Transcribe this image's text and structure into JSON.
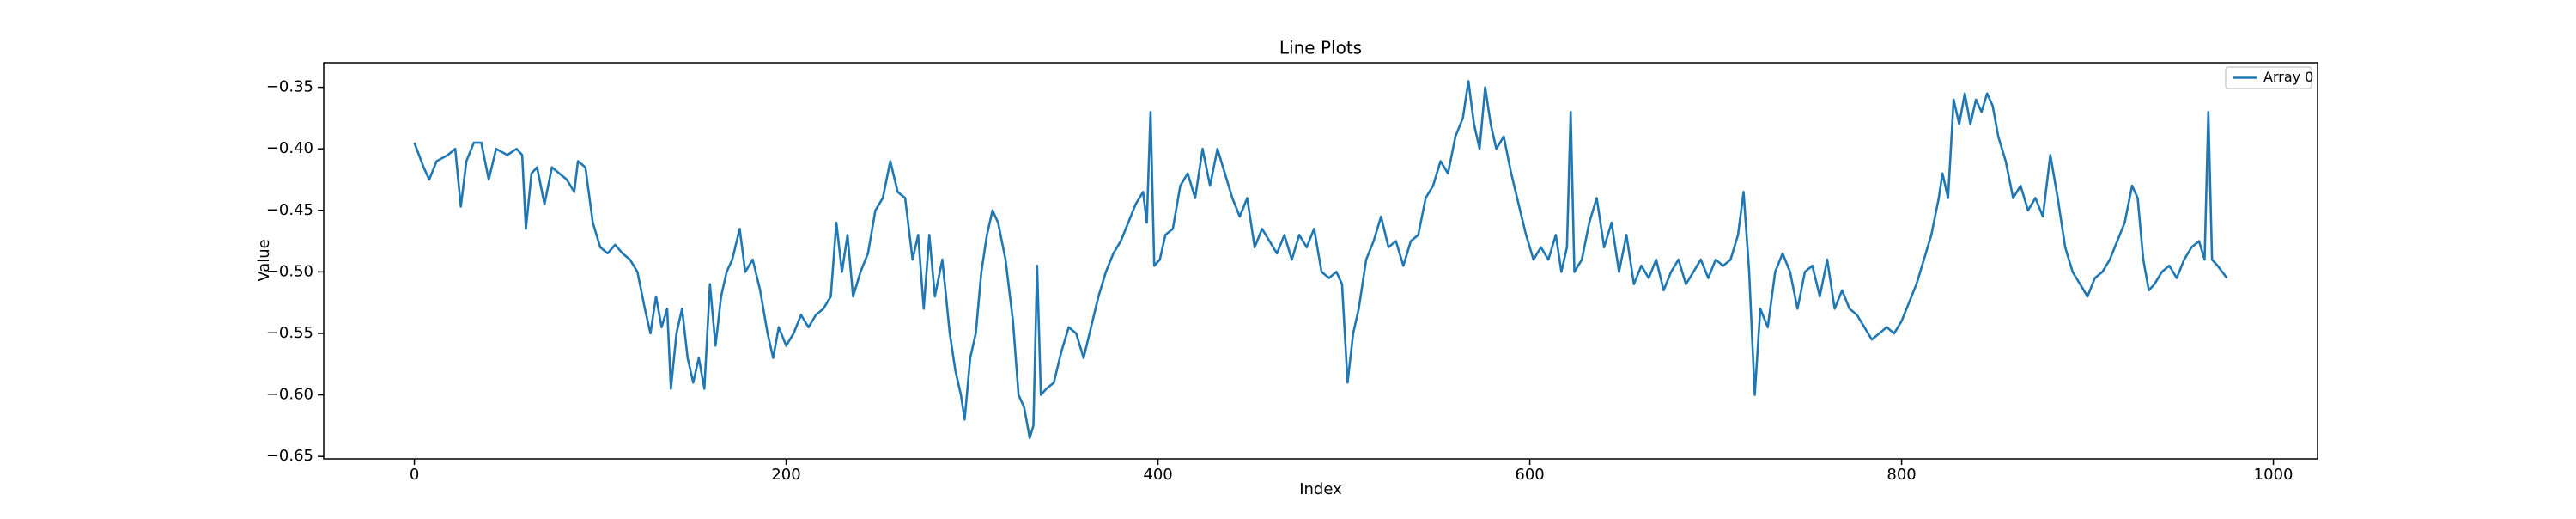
{
  "chart_data": {
    "type": "line",
    "title": "Line Plots",
    "xlabel": "Index",
    "ylabel": "Value",
    "x": [
      0,
      5,
      8,
      12,
      18,
      22,
      25,
      28,
      32,
      36,
      40,
      44,
      50,
      55,
      58,
      60,
      63,
      66,
      70,
      74,
      78,
      82,
      86,
      88,
      92,
      96,
      100,
      104,
      108,
      112,
      116,
      120,
      124,
      127,
      130,
      133,
      136,
      138,
      141,
      144,
      147,
      150,
      153,
      156,
      159,
      162,
      165,
      168,
      171,
      175,
      178,
      182,
      186,
      190,
      193,
      196,
      200,
      204,
      208,
      212,
      216,
      220,
      224,
      227,
      230,
      233,
      236,
      240,
      244,
      248,
      252,
      256,
      260,
      264,
      268,
      271,
      274,
      277,
      280,
      284,
      288,
      291,
      294,
      296,
      299,
      302,
      305,
      308,
      311,
      314,
      318,
      322,
      325,
      328,
      331,
      333,
      335,
      337,
      340,
      344,
      348,
      352,
      356,
      360,
      364,
      368,
      372,
      376,
      380,
      384,
      388,
      392,
      394,
      396,
      398,
      401,
      404,
      408,
      412,
      416,
      420,
      424,
      428,
      432,
      436,
      440,
      444,
      448,
      452,
      456,
      460,
      464,
      468,
      472,
      476,
      480,
      484,
      488,
      492,
      496,
      499,
      502,
      505,
      508,
      512,
      516,
      520,
      524,
      528,
      532,
      536,
      540,
      544,
      548,
      552,
      556,
      560,
      564,
      567,
      570,
      573,
      576,
      579,
      582,
      586,
      590,
      594,
      598,
      602,
      606,
      610,
      614,
      617,
      620,
      622,
      624,
      628,
      632,
      636,
      640,
      644,
      648,
      652,
      656,
      660,
      664,
      668,
      672,
      676,
      680,
      684,
      688,
      692,
      696,
      700,
      704,
      708,
      712,
      715,
      718,
      721,
      724,
      728,
      732,
      736,
      740,
      744,
      748,
      752,
      756,
      760,
      764,
      768,
      772,
      776,
      780,
      784,
      788,
      792,
      796,
      800,
      804,
      808,
      812,
      816,
      820,
      822,
      825,
      828,
      831,
      834,
      837,
      840,
      843,
      846,
      849,
      852,
      856,
      860,
      864,
      868,
      872,
      876,
      880,
      884,
      888,
      892,
      896,
      900,
      904,
      908,
      912,
      916,
      920,
      924,
      927,
      930,
      933,
      936,
      940,
      944,
      948,
      952,
      956,
      960,
      963,
      965,
      967,
      970,
      975
    ],
    "series": [
      {
        "name": "Array 0",
        "color": "#1f77b4",
        "values": [
          -0.395,
          -0.415,
          -0.425,
          -0.41,
          -0.405,
          -0.4,
          -0.447,
          -0.41,
          -0.395,
          -0.395,
          -0.425,
          -0.4,
          -0.405,
          -0.4,
          -0.405,
          -0.465,
          -0.42,
          -0.415,
          -0.445,
          -0.415,
          -0.42,
          -0.425,
          -0.435,
          -0.41,
          -0.415,
          -0.46,
          -0.48,
          -0.485,
          -0.478,
          -0.485,
          -0.49,
          -0.5,
          -0.53,
          -0.55,
          -0.52,
          -0.545,
          -0.53,
          -0.595,
          -0.55,
          -0.53,
          -0.57,
          -0.59,
          -0.57,
          -0.595,
          -0.51,
          -0.56,
          -0.52,
          -0.5,
          -0.49,
          -0.465,
          -0.5,
          -0.49,
          -0.515,
          -0.55,
          -0.57,
          -0.545,
          -0.56,
          -0.55,
          -0.535,
          -0.545,
          -0.535,
          -0.53,
          -0.52,
          -0.46,
          -0.5,
          -0.47,
          -0.52,
          -0.5,
          -0.485,
          -0.45,
          -0.44,
          -0.41,
          -0.435,
          -0.44,
          -0.49,
          -0.47,
          -0.53,
          -0.47,
          -0.52,
          -0.49,
          -0.55,
          -0.58,
          -0.6,
          -0.62,
          -0.57,
          -0.55,
          -0.5,
          -0.47,
          -0.45,
          -0.46,
          -0.49,
          -0.54,
          -0.6,
          -0.61,
          -0.635,
          -0.625,
          -0.495,
          -0.6,
          -0.595,
          -0.59,
          -0.565,
          -0.545,
          -0.55,
          -0.57,
          -0.545,
          -0.52,
          -0.5,
          -0.485,
          -0.475,
          -0.46,
          -0.445,
          -0.435,
          -0.46,
          -0.37,
          -0.495,
          -0.49,
          -0.47,
          -0.465,
          -0.43,
          -0.42,
          -0.44,
          -0.4,
          -0.43,
          -0.4,
          -0.42,
          -0.44,
          -0.455,
          -0.44,
          -0.48,
          -0.465,
          -0.475,
          -0.485,
          -0.47,
          -0.49,
          -0.47,
          -0.48,
          -0.465,
          -0.5,
          -0.505,
          -0.5,
          -0.51,
          -0.59,
          -0.55,
          -0.53,
          -0.49,
          -0.475,
          -0.455,
          -0.48,
          -0.475,
          -0.495,
          -0.475,
          -0.47,
          -0.44,
          -0.43,
          -0.41,
          -0.42,
          -0.39,
          -0.375,
          -0.345,
          -0.38,
          -0.4,
          -0.35,
          -0.38,
          -0.4,
          -0.39,
          -0.42,
          -0.445,
          -0.47,
          -0.49,
          -0.48,
          -0.49,
          -0.47,
          -0.5,
          -0.48,
          -0.37,
          -0.5,
          -0.49,
          -0.46,
          -0.44,
          -0.48,
          -0.46,
          -0.5,
          -0.47,
          -0.51,
          -0.495,
          -0.505,
          -0.49,
          -0.515,
          -0.5,
          -0.49,
          -0.51,
          -0.5,
          -0.49,
          -0.505,
          -0.49,
          -0.495,
          -0.49,
          -0.47,
          -0.435,
          -0.5,
          -0.6,
          -0.53,
          -0.545,
          -0.5,
          -0.485,
          -0.5,
          -0.53,
          -0.5,
          -0.495,
          -0.52,
          -0.49,
          -0.53,
          -0.515,
          -0.53,
          -0.535,
          -0.545,
          -0.555,
          -0.55,
          -0.545,
          -0.55,
          -0.54,
          -0.525,
          -0.51,
          -0.49,
          -0.47,
          -0.44,
          -0.42,
          -0.44,
          -0.36,
          -0.38,
          -0.355,
          -0.38,
          -0.36,
          -0.37,
          -0.355,
          -0.365,
          -0.39,
          -0.41,
          -0.44,
          -0.43,
          -0.45,
          -0.44,
          -0.455,
          -0.405,
          -0.44,
          -0.48,
          -0.5,
          -0.51,
          -0.52,
          -0.505,
          -0.5,
          -0.49,
          -0.475,
          -0.46,
          -0.43,
          -0.44,
          -0.49,
          -0.515,
          -0.51,
          -0.5,
          -0.495,
          -0.505,
          -0.49,
          -0.48,
          -0.475,
          -0.49,
          -0.37,
          -0.49,
          -0.495,
          -0.505
        ]
      }
    ],
    "xlim": [
      -48.75,
      1023.75
    ],
    "ylim": [
      -0.652,
      -0.33
    ],
    "xticks": [
      0,
      200,
      400,
      600,
      800,
      1000
    ],
    "yticks": [
      {
        "value": -0.65,
        "label": "−0.65"
      },
      {
        "value": -0.6,
        "label": "−0.60"
      },
      {
        "value": -0.55,
        "label": "−0.55"
      },
      {
        "value": -0.5,
        "label": "−0.50"
      },
      {
        "value": -0.45,
        "label": "−0.45"
      },
      {
        "value": -0.4,
        "label": "−0.40"
      },
      {
        "value": -0.35,
        "label": "−0.35"
      }
    ],
    "grid": false,
    "legend": "upper right"
  }
}
